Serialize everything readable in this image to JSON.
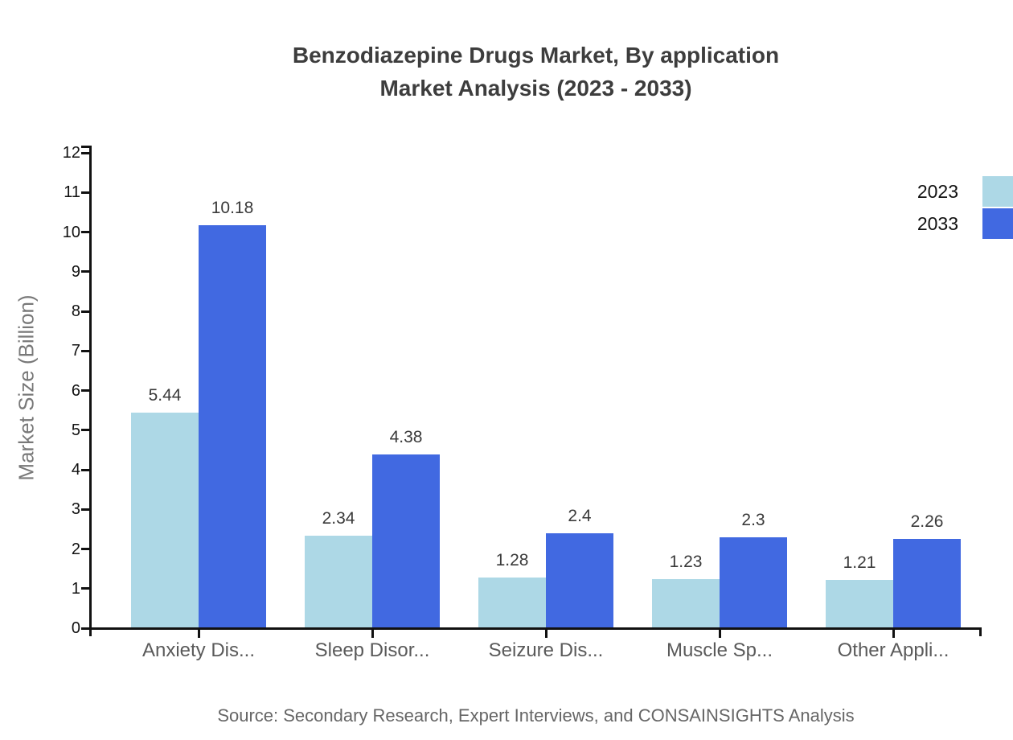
{
  "title": {
    "line1": "Benzodiazepine Drugs Market, By application",
    "line2": "Market Analysis (2023 - 2033)"
  },
  "source": "Source: Secondary Research, Expert Interviews, and CONSAINSIGHTS Analysis",
  "chart_data": {
    "type": "bar",
    "title": "Benzodiazepine Drugs Market, By application Market Analysis (2023 - 2033)",
    "xlabel": "",
    "ylabel": "Market Size (Billion)",
    "ylim": [
      0,
      12
    ],
    "yticks": [
      "0",
      "1",
      "2",
      "3",
      "4",
      "5",
      "6",
      "7",
      "8",
      "9",
      "10",
      "11",
      "12"
    ],
    "grid": false,
    "legend_position": "top-right",
    "categories": [
      "Anxiety Dis...",
      "Sleep Disor...",
      "Seizure Dis...",
      "Muscle Sp...",
      "Other Appli..."
    ],
    "series": [
      {
        "name": "2023",
        "color": "#add8e6",
        "values": [
          5.44,
          2.34,
          1.28,
          1.23,
          1.21
        ],
        "labels": [
          "5.44",
          "2.34",
          "1.28",
          "1.23",
          "1.21"
        ]
      },
      {
        "name": "2033",
        "color": "#4169e1",
        "values": [
          10.18,
          4.38,
          2.4,
          2.3,
          2.26
        ],
        "labels": [
          "10.18",
          "4.38",
          "2.4",
          "2.3",
          "2.26"
        ]
      }
    ],
    "axis_color": "#111111"
  }
}
